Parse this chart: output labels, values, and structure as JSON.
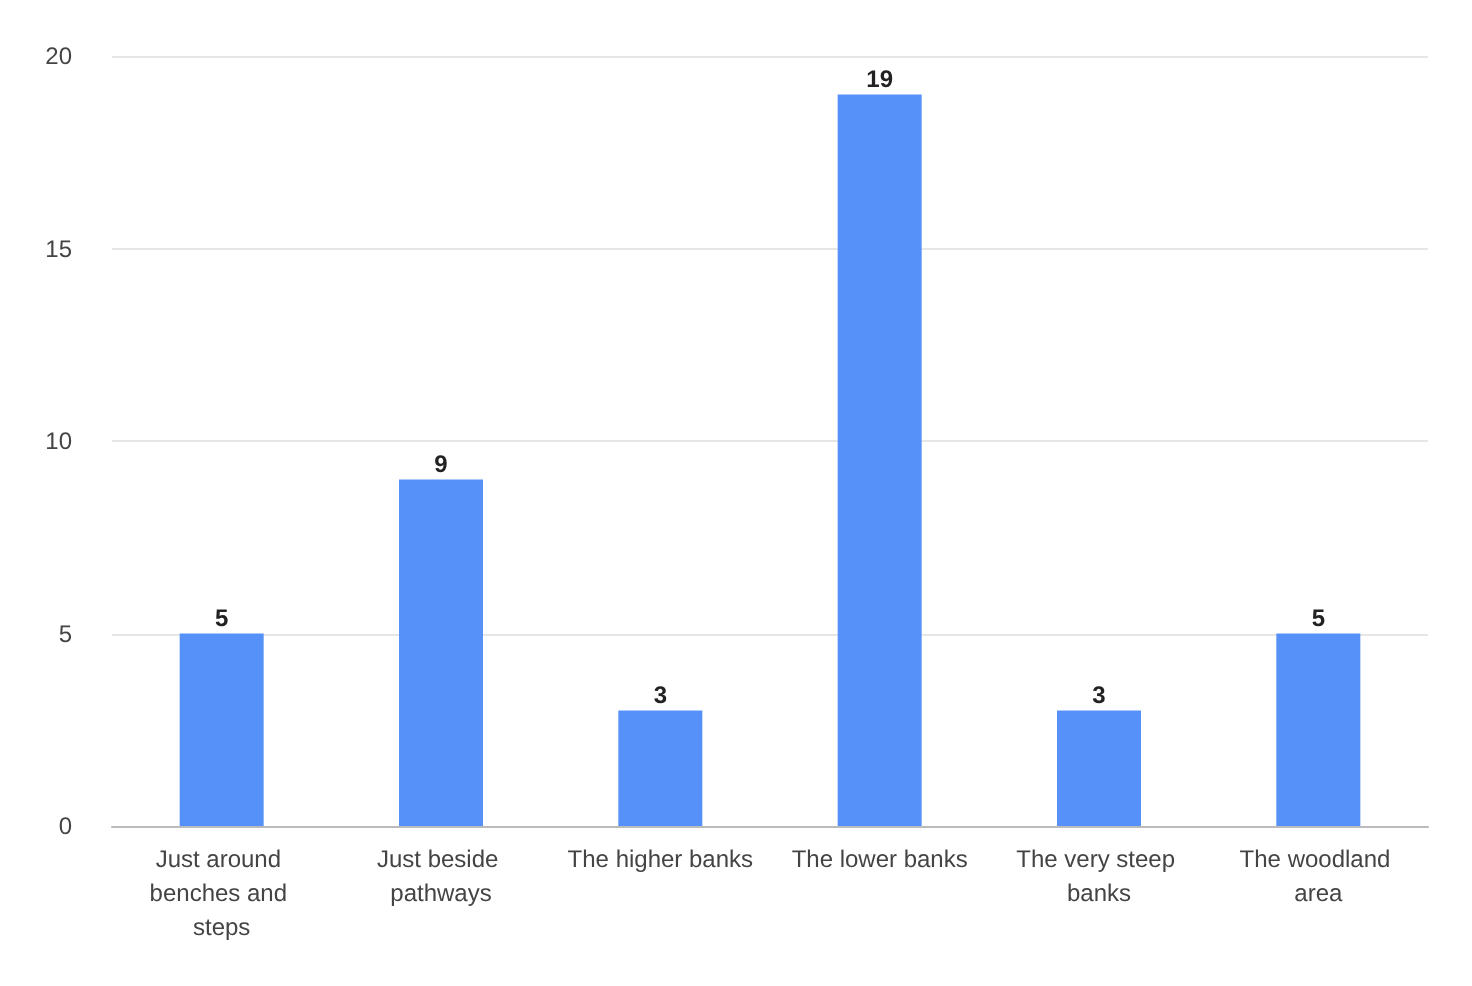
{
  "chart_data": {
    "type": "bar",
    "categories": [
      "Just around benches and steps",
      "Just beside pathways",
      "The higher banks",
      "The lower banks",
      "The very steep banks",
      "The woodland area"
    ],
    "values": [
      5,
      9,
      3,
      19,
      3,
      5
    ],
    "color": "#5591f8",
    "ylim": [
      0,
      20
    ],
    "yticks": [
      0,
      5,
      10,
      15,
      20
    ],
    "grid": "y",
    "data_labels": true
  }
}
